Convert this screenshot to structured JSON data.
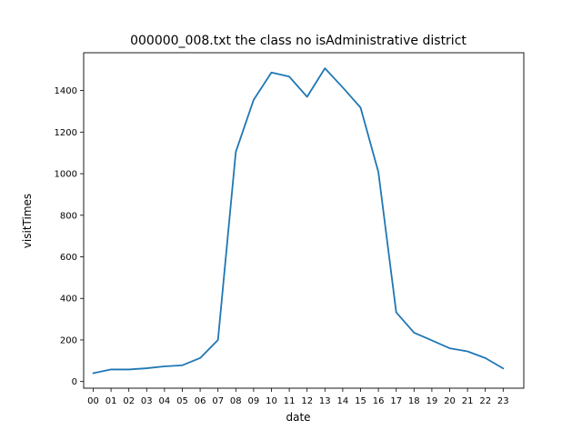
{
  "chart_data": {
    "type": "line",
    "title": "000000_008.txt the class no isAdministrative district",
    "xlabel": "date",
    "ylabel": "visitTimes",
    "x": [
      "00",
      "01",
      "02",
      "03",
      "04",
      "05",
      "06",
      "07",
      "08",
      "09",
      "10",
      "11",
      "12",
      "13",
      "14",
      "15",
      "16",
      "17",
      "18",
      "19",
      "20",
      "21",
      "22",
      "23"
    ],
    "series": [
      {
        "values": [
          40,
          58,
          58,
          64,
          73,
          78,
          113,
          200,
          1105,
          1355,
          1487,
          1467,
          1370,
          1507,
          1415,
          1318,
          1008,
          333,
          235,
          198,
          160,
          145,
          113,
          63
        ]
      }
    ],
    "ylim": [
      -32,
      1582
    ],
    "yticks": [
      0,
      200,
      400,
      600,
      800,
      1000,
      1200,
      1400
    ],
    "grid": false,
    "legend": false,
    "line_color": "#1f77b4"
  }
}
